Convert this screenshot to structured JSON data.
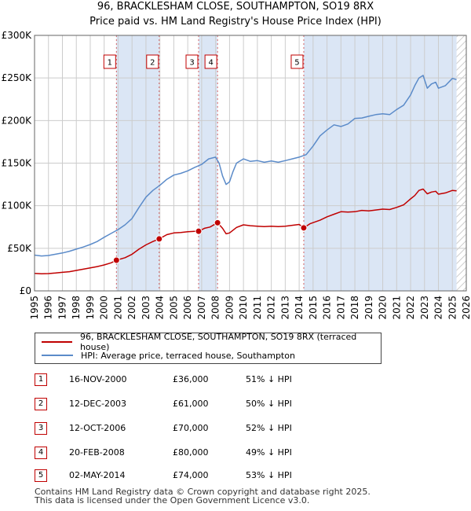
{
  "titles": {
    "line1": "96, BRACKLESHAM CLOSE, SOUTHAMPTON, SO19 8RX",
    "line2": "Price paid vs. HM Land Registry's House Price Index (HPI)"
  },
  "legend": {
    "property": "96, BRACKLESHAM CLOSE, SOUTHAMPTON, SO19 8RX (terraced house)",
    "hpi": "HPI: Average price, terraced house, Southampton"
  },
  "colors": {
    "property": "#c00000",
    "hpi": "#5b8bc9",
    "band": "#dbe6f5",
    "grid": "#cccccc",
    "marker_border": "#c00000"
  },
  "transactions": [
    {
      "num": "1",
      "date": "16-NOV-2000",
      "price": "£36,000",
      "hpi": "51% ↓ HPI"
    },
    {
      "num": "2",
      "date": "12-DEC-2003",
      "price": "£61,000",
      "hpi": "50% ↓ HPI"
    },
    {
      "num": "3",
      "date": "12-OCT-2006",
      "price": "£70,000",
      "hpi": "52% ↓ HPI"
    },
    {
      "num": "4",
      "date": "20-FEB-2008",
      "price": "£80,000",
      "hpi": "49% ↓ HPI"
    },
    {
      "num": "5",
      "date": "02-MAY-2014",
      "price": "£74,000",
      "hpi": "53% ↓ HPI"
    }
  ],
  "footer": {
    "line1": "Contains HM Land Registry data © Crown copyright and database right 2025.",
    "line2": "This data is licensed under the Open Government Licence v3.0."
  },
  "chart_data": {
    "type": "line",
    "title": "Price paid vs. HM Land Registry's House Price Index (HPI)",
    "xlabel": "",
    "ylabel": "",
    "xlim": [
      1995,
      2026
    ],
    "ylim": [
      0,
      300000
    ],
    "grid": true,
    "legend_position": "below",
    "y_ticks": [
      {
        "value": 0,
        "label": "£0"
      },
      {
        "value": 50000,
        "label": "£50K"
      },
      {
        "value": 100000,
        "label": "£100K"
      },
      {
        "value": 150000,
        "label": "£150K"
      },
      {
        "value": 200000,
        "label": "£200K"
      },
      {
        "value": 250000,
        "label": "£250K"
      },
      {
        "value": 300000,
        "label": "£300K"
      }
    ],
    "x_ticks": [
      "1995",
      "1996",
      "1997",
      "1998",
      "1999",
      "2000",
      "2001",
      "2002",
      "2003",
      "2004",
      "2005",
      "2006",
      "2007",
      "2008",
      "2009",
      "2010",
      "2011",
      "2012",
      "2013",
      "2014",
      "2015",
      "2016",
      "2017",
      "2018",
      "2019",
      "2020",
      "2021",
      "2022",
      "2023",
      "2024",
      "2025",
      "2026"
    ],
    "shaded_periods": [
      [
        2000.88,
        2003.95
      ],
      [
        2006.78,
        2008.14
      ],
      [
        2014.33,
        2025.3
      ]
    ],
    "future_hatch_start": 2025.3,
    "series": [
      {
        "name": "HPI: Average price, terraced house, Southampton",
        "x": [
          1995.0,
          1995.5,
          1996.0,
          1996.5,
          1997.0,
          1997.5,
          1998.0,
          1998.5,
          1999.0,
          1999.5,
          2000.0,
          2000.5,
          2001.0,
          2001.5,
          2002.0,
          2002.5,
          2003.0,
          2003.5,
          2004.0,
          2004.5,
          2005.0,
          2005.5,
          2006.0,
          2006.5,
          2007.0,
          2007.5,
          2008.0,
          2008.25,
          2008.5,
          2008.75,
          2009.0,
          2009.25,
          2009.5,
          2010.0,
          2010.5,
          2011.0,
          2011.5,
          2012.0,
          2012.5,
          2013.0,
          2013.5,
          2014.0,
          2014.5,
          2015.0,
          2015.5,
          2016.0,
          2016.5,
          2017.0,
          2017.5,
          2018.0,
          2018.5,
          2019.0,
          2019.5,
          2020.0,
          2020.5,
          2021.0,
          2021.5,
          2022.0,
          2022.3,
          2022.6,
          2022.9,
          2023.2,
          2023.5,
          2023.8,
          2024.0,
          2024.5,
          2025.0,
          2025.3
        ],
        "values": [
          42000,
          41000,
          41500,
          43000,
          44500,
          46500,
          49000,
          51500,
          54500,
          58000,
          63000,
          67500,
          72000,
          77500,
          85000,
          98000,
          110000,
          118000,
          124000,
          131000,
          136000,
          138000,
          141000,
          145000,
          148500,
          155000,
          157000,
          150000,
          135000,
          125000,
          128000,
          140000,
          150000,
          155000,
          152000,
          153000,
          151000,
          152500,
          151000,
          153000,
          155000,
          157000,
          160000,
          170000,
          182000,
          189000,
          195000,
          193000,
          196000,
          202500,
          203000,
          205000,
          207000,
          208000,
          207000,
          213000,
          218000,
          230000,
          241000,
          250000,
          253000,
          238000,
          243000,
          245000,
          238000,
          241000,
          249500,
          248000
        ]
      },
      {
        "name": "96, BRACKLESHAM CLOSE, SOUTHAMPTON, SO19 8RX (terraced house)",
        "x": [
          1995.0,
          1995.5,
          1996.0,
          1996.5,
          1997.0,
          1997.5,
          1998.0,
          1998.5,
          1999.0,
          1999.5,
          2000.0,
          2000.5,
          2000.88,
          2001.5,
          2002.0,
          2002.5,
          2003.0,
          2003.5,
          2003.95,
          2004.5,
          2005.0,
          2005.5,
          2006.0,
          2006.5,
          2006.78,
          2007.2,
          2007.6,
          2008.14,
          2008.5,
          2008.75,
          2009.0,
          2009.5,
          2010.0,
          2010.5,
          2011.0,
          2011.5,
          2012.0,
          2012.5,
          2013.0,
          2013.5,
          2014.0,
          2014.33,
          2014.8,
          2015.5,
          2016.0,
          2016.5,
          2017.0,
          2017.5,
          2018.0,
          2018.5,
          2019.0,
          2019.5,
          2020.0,
          2020.5,
          2021.0,
          2021.5,
          2022.0,
          2022.3,
          2022.6,
          2022.9,
          2023.2,
          2023.5,
          2023.8,
          2024.0,
          2024.5,
          2025.0,
          2025.3
        ],
        "values": [
          20500,
          20000,
          20300,
          21000,
          21800,
          22500,
          24000,
          25500,
          27000,
          28500,
          30500,
          33000,
          36000,
          39000,
          43000,
          49000,
          54000,
          58000,
          61000,
          66000,
          68000,
          68500,
          69500,
          70000,
          70000,
          73500,
          75000,
          80000,
          73500,
          67000,
          68000,
          74500,
          77500,
          76500,
          76000,
          75500,
          76000,
          75500,
          76000,
          77000,
          78000,
          74000,
          79000,
          83000,
          87000,
          90000,
          93000,
          92500,
          93000,
          94500,
          94000,
          95000,
          96000,
          95500,
          98000,
          101000,
          108000,
          112000,
          118000,
          119500,
          114000,
          116000,
          117000,
          113500,
          115000,
          118000,
          117500
        ]
      }
    ],
    "sales": [
      {
        "label": "1",
        "x": 2000.88,
        "value": 36000
      },
      {
        "label": "2",
        "x": 2003.95,
        "value": 61000
      },
      {
        "label": "3",
        "x": 2006.78,
        "value": 70000
      },
      {
        "label": "4",
        "x": 2008.14,
        "value": 80000
      },
      {
        "label": "5",
        "x": 2014.33,
        "value": 74000
      }
    ]
  }
}
